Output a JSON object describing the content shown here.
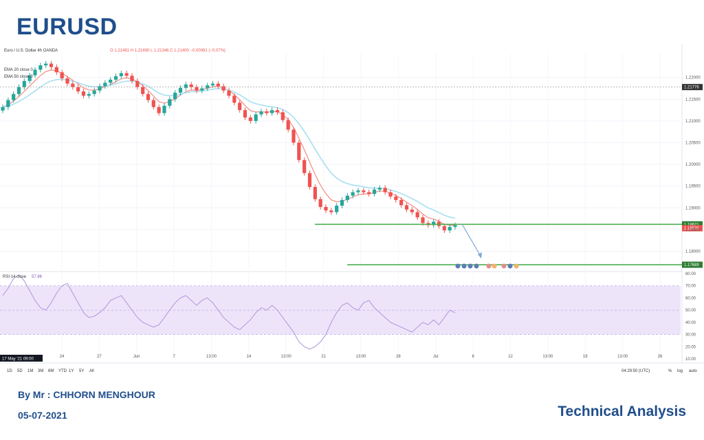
{
  "page": {
    "title": "EURUSD",
    "author": "By Mr : CHHORN MENGHOUR",
    "date": "05-07-2021",
    "footer_tag": "Technical Analysis"
  },
  "colors": {
    "brand": "#1f4e8c",
    "up_candle": "#26a69a",
    "down_candle": "#ef5350",
    "ema20": "#f28b82",
    "ema50": "#a6dff0",
    "support_line": "#4caf50",
    "rsi_line": "#b39ddb",
    "rsi_band": "#ede4fa"
  },
  "chart_data": {
    "type": "line",
    "symbol_header": "Euro / U.S. Dollar  4h  OANDA",
    "ohlc_header": "O 1.21481  H 1.21490  L 1.21346  C 1.21400  −0.00081 (−0.07%)",
    "legend": [
      "EMA 20 close 0",
      "EMA 50 close 0"
    ],
    "y_ticks": [
      "1.22000",
      "1.21500",
      "1.21000",
      "1.20500",
      "1.20000",
      "1.19500",
      "1.19000",
      "1.18500",
      "1.18000"
    ],
    "ylim": [
      1.1758,
      1.2255
    ],
    "x_ticks": [
      "24",
      "27",
      "Jun",
      "7",
      "13:00",
      "14",
      "13:00",
      "21",
      "13:00",
      "28",
      "Jul",
      "6",
      "12",
      "13:00",
      "19",
      "13:00",
      "26"
    ],
    "price_labels": [
      {
        "label": "1.21776",
        "value": 1.2178,
        "color": "#333333"
      },
      {
        "label": "1.18621",
        "value": 1.1862,
        "color": "#2e7d32"
      },
      {
        "label": "1.18535",
        "value": 1.1853,
        "color": "#ef5350"
      },
      {
        "label": "1.17689",
        "value": 1.1769,
        "color": "#2e7d32"
      }
    ],
    "support_levels": [
      1.1862,
      1.1769
    ],
    "close_series": [
      1.2132,
      1.2148,
      1.2162,
      1.2178,
      1.2192,
      1.2205,
      1.2218,
      1.2228,
      1.2232,
      1.2224,
      1.2212,
      1.2198,
      1.2186,
      1.2178,
      1.2168,
      1.2158,
      1.2162,
      1.217,
      1.218,
      1.2188,
      1.2195,
      1.2203,
      1.221,
      1.2204,
      1.2192,
      1.2178,
      1.2162,
      1.2148,
      1.2132,
      1.2118,
      1.2135,
      1.215,
      1.2165,
      1.2176,
      1.2184,
      1.2178,
      1.217,
      1.2175,
      1.2182,
      1.2186,
      1.218,
      1.217,
      1.2158,
      1.2142,
      1.2125,
      1.2108,
      1.21,
      1.2115,
      1.2122,
      1.2118,
      1.2125,
      1.212,
      1.2102,
      1.208,
      1.205,
      1.201,
      1.198,
      1.1948,
      1.192,
      1.1902,
      1.1894,
      1.189,
      1.1905,
      1.1918,
      1.1928,
      1.1936,
      1.194,
      1.1936,
      1.1932,
      1.1942,
      1.1946,
      1.1936,
      1.1926,
      1.1918,
      1.1906,
      1.1896,
      1.189,
      1.1878,
      1.1865,
      1.186,
      1.1868,
      1.1858,
      1.1848,
      1.1856,
      1.186
    ],
    "rsi": {
      "label": "RSI 14 close",
      "value_label": "57.86",
      "y_ticks": [
        "80.00",
        "70.00",
        "60.00",
        "50.00",
        "40.00",
        "30.00",
        "20.00",
        "10.00"
      ],
      "ylim": [
        10,
        80
      ],
      "band": [
        30,
        70
      ],
      "values": [
        62,
        68,
        76,
        79,
        74,
        66,
        58,
        52,
        50,
        56,
        64,
        70,
        72,
        64,
        56,
        48,
        44,
        45,
        48,
        52,
        58,
        60,
        62,
        56,
        50,
        44,
        40,
        38,
        36,
        38,
        44,
        50,
        56,
        60,
        62,
        58,
        54,
        58,
        60,
        56,
        50,
        44,
        40,
        36,
        34,
        38,
        42,
        48,
        52,
        50,
        54,
        50,
        44,
        38,
        32,
        24,
        20,
        18,
        20,
        24,
        30,
        40,
        48,
        54,
        56,
        52,
        50,
        56,
        58,
        52,
        48,
        44,
        40,
        38,
        36,
        34,
        32,
        36,
        40,
        38,
        42,
        38,
        44,
        50,
        48
      ]
    },
    "bottom_bar": {
      "timeframes": [
        "1D",
        "5D",
        "1M",
        "3M",
        "6M",
        "YTD",
        "1Y",
        "5Y",
        "All"
      ],
      "time": "04:29:50 (UTC)",
      "scale_options": [
        "%",
        "log",
        "auto"
      ],
      "date_badge": "17 May '21  09:00"
    }
  }
}
